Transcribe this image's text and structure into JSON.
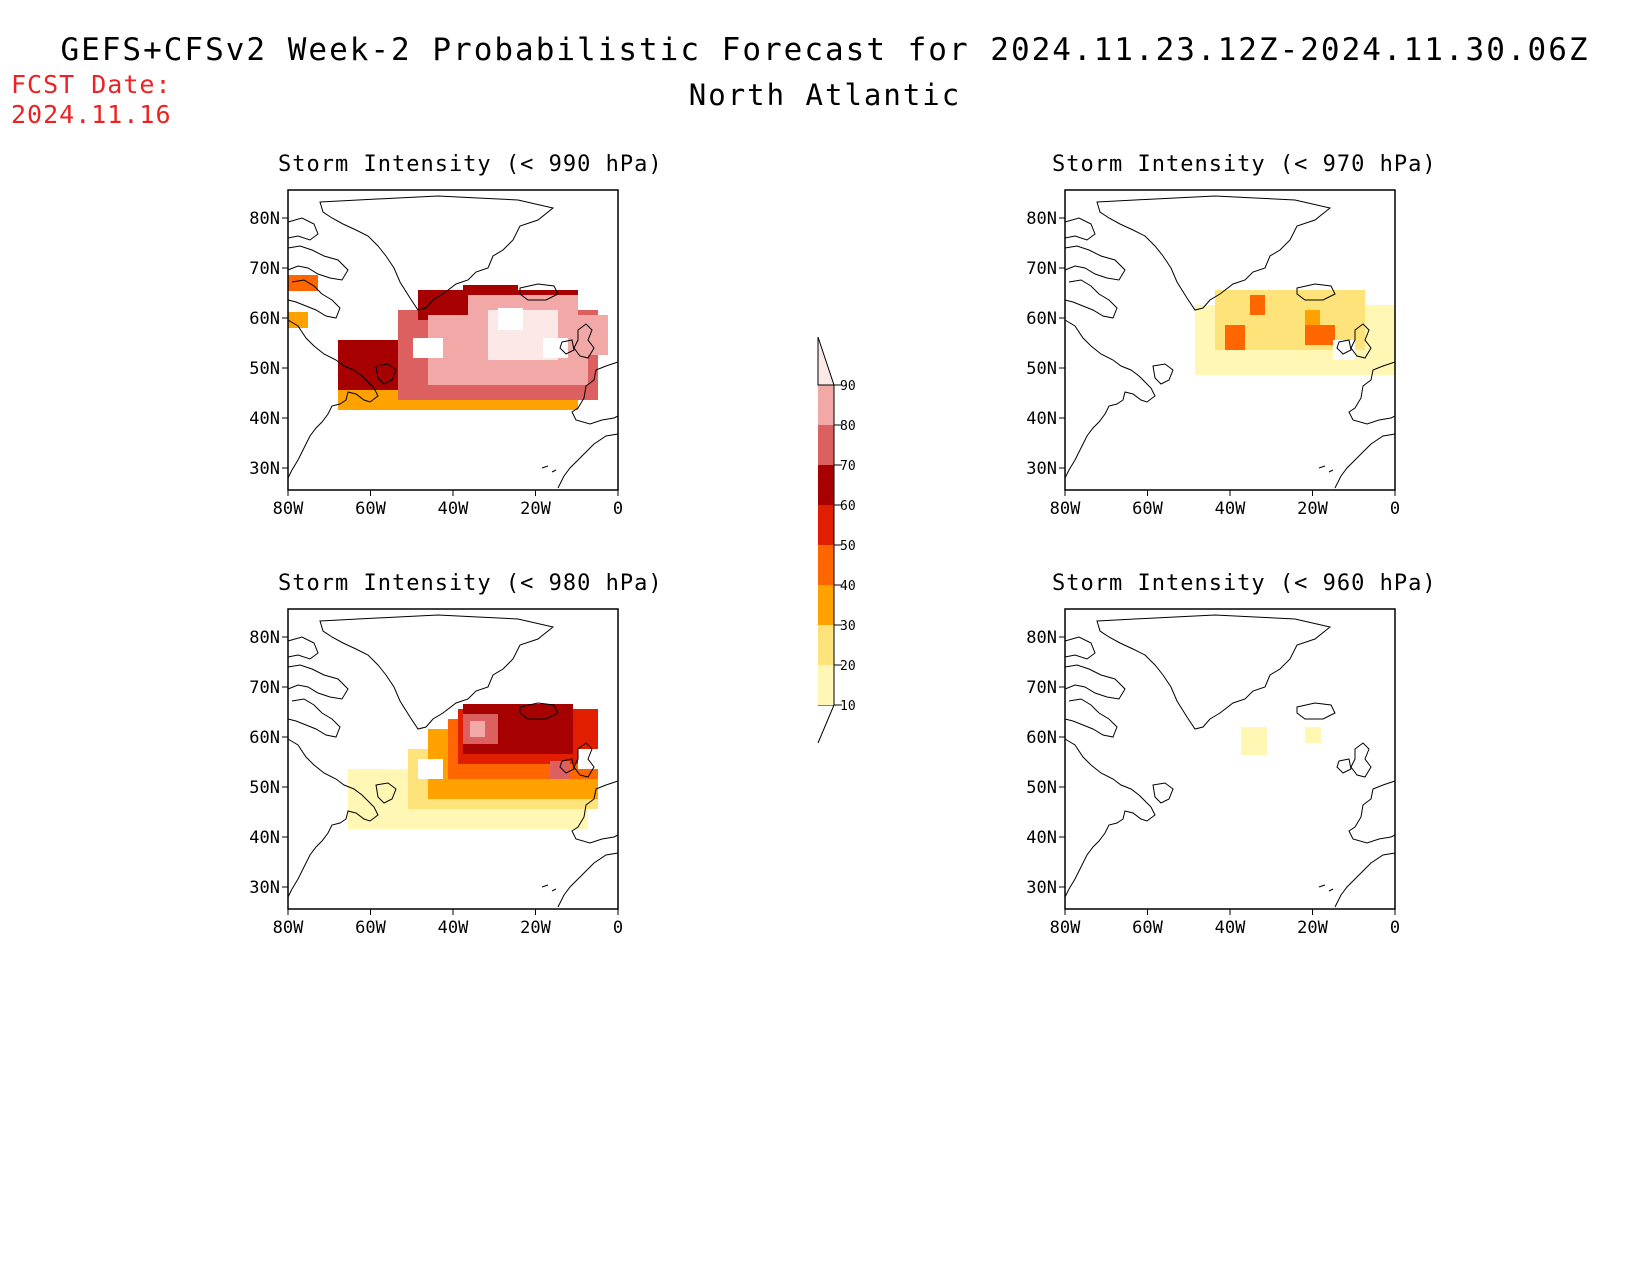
{
  "title": "GEFS+CFSv2 Week-2 Probabilistic Forecast for 2024.11.23.12Z-2024.11.30.06Z",
  "subtitle": "North Atlantic",
  "fcst_date_label": "FCST Date:",
  "fcst_date_value": "2024.11.16",
  "panels": [
    {
      "title": "Storm Intensity (< 990 hPa)"
    },
    {
      "title": "Storm Intensity (< 970 hPa)"
    },
    {
      "title": "Storm Intensity (< 980 hPa)"
    },
    {
      "title": "Storm Intensity (< 960 hPa)"
    }
  ],
  "axes": {
    "lat_labels": [
      "80N",
      "70N",
      "60N",
      "50N",
      "40N",
      "30N"
    ],
    "lon_labels": [
      "80W",
      "60W",
      "40W",
      "20W",
      "0"
    ]
  },
  "colorbar": {
    "levels": [
      "10",
      "20",
      "30",
      "40",
      "50",
      "60",
      "70",
      "80",
      "90"
    ],
    "colors": [
      "#fff7b3",
      "#fde37a",
      "#ffa200",
      "#ff6600",
      "#e21e00",
      "#a60000",
      "#dc6060",
      "#f3a8a8",
      "#fde8e8"
    ]
  }
}
